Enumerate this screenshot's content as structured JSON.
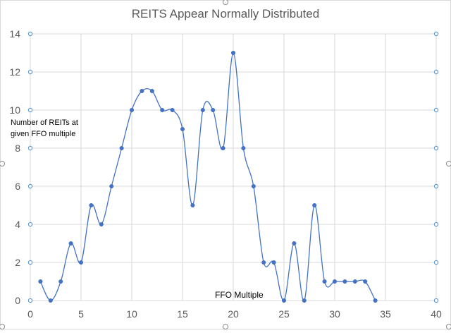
{
  "chart_data": {
    "type": "line",
    "title": "REITS Appear Normally Distributed",
    "xlabel": "FFO Multiple",
    "ylabel": "Number of REITs at given FFO multiple",
    "xlim": [
      0,
      40
    ],
    "ylim": [
      0,
      14
    ],
    "x_ticks": [
      "0",
      "5",
      "10",
      "15",
      "20",
      "25",
      "30",
      "35",
      "40"
    ],
    "y_ticks": [
      "0",
      "2",
      "4",
      "6",
      "8",
      "10",
      "12",
      "14"
    ],
    "grid": true,
    "smooth": true,
    "series": [
      {
        "color": "#4472c4",
        "x": [
          1,
          2,
          3,
          4,
          5,
          6,
          7,
          8,
          9,
          10,
          11,
          12,
          13,
          14,
          15,
          16,
          17,
          18,
          19,
          20,
          21,
          22,
          23,
          24,
          25,
          26,
          27,
          28,
          29,
          30,
          31,
          32,
          33,
          34
        ],
        "y": [
          1,
          0,
          1,
          3,
          2,
          5,
          4,
          6,
          8,
          10,
          11,
          11,
          10,
          10,
          9,
          5,
          10,
          10,
          8,
          13,
          8,
          6,
          2,
          2,
          0,
          3,
          0,
          5,
          1,
          1,
          1,
          1,
          1,
          0
        ]
      }
    ]
  }
}
